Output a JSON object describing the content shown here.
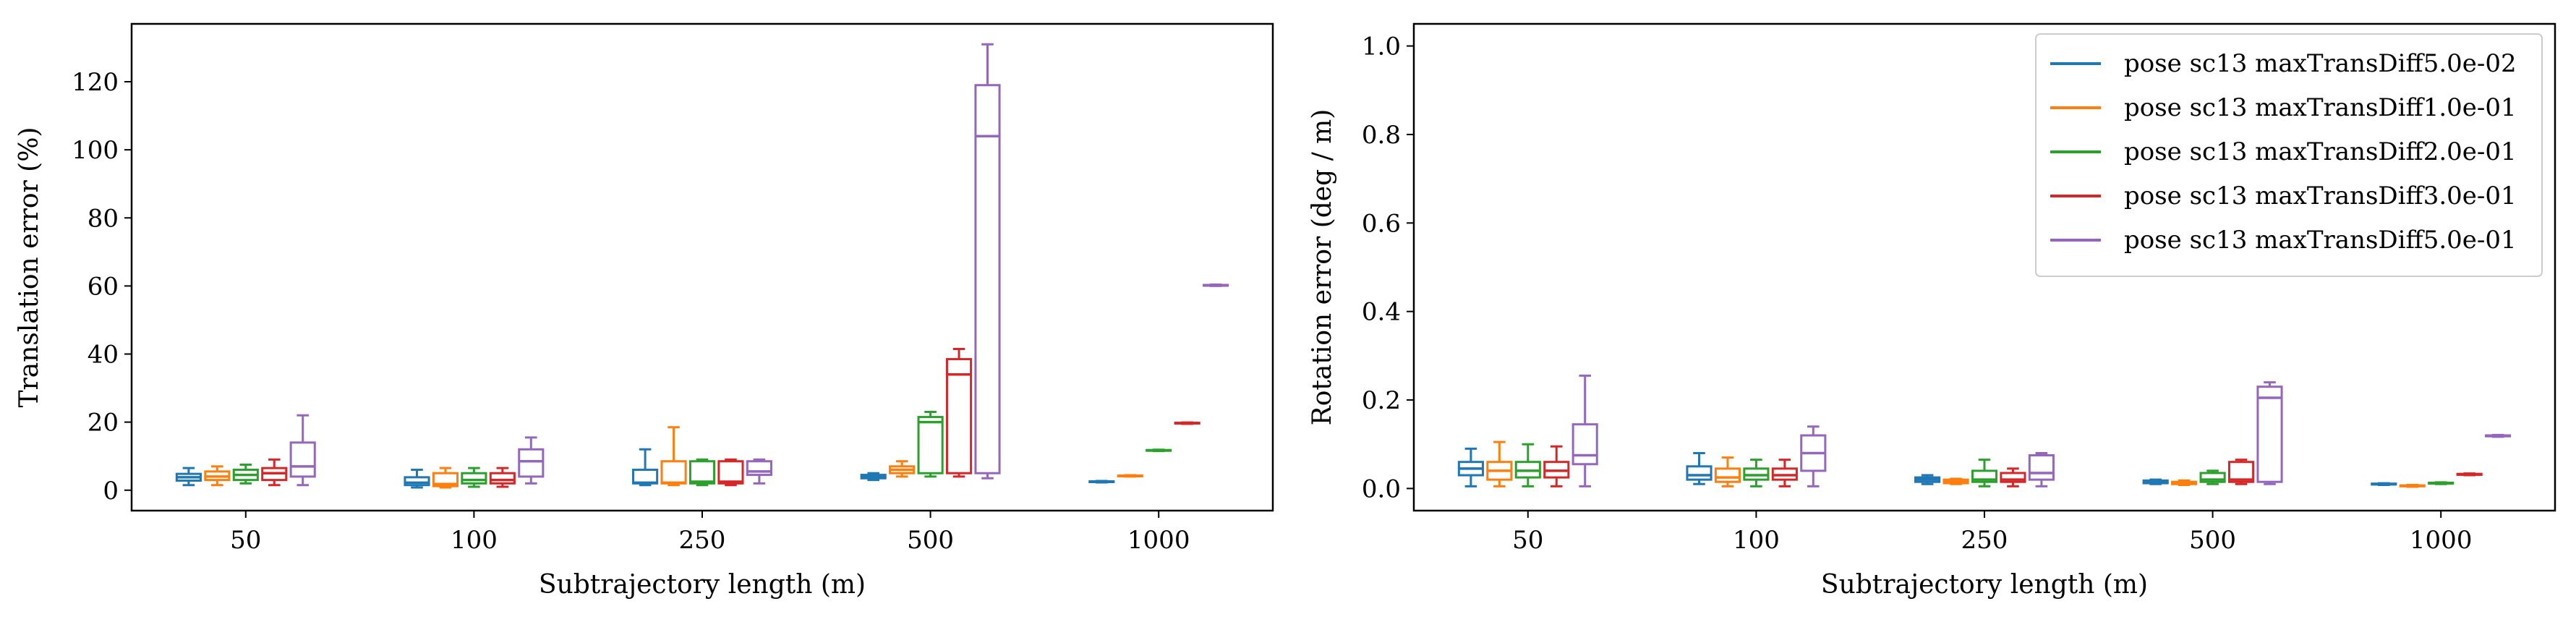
{
  "colors": {
    "series": [
      "#1f77b4",
      "#ff7f0e",
      "#2ca02c",
      "#d62728",
      "#9467bd"
    ]
  },
  "chart_data": [
    {
      "type": "boxplot",
      "xlabel": "Subtrajectory length (m)",
      "ylabel": "Translation error (%)",
      "categories": [
        "50",
        "100",
        "250",
        "500",
        "1000"
      ],
      "ylim": [
        -6,
        137
      ],
      "yticks": [
        0,
        20,
        40,
        60,
        80,
        100,
        120
      ],
      "series": [
        {
          "name": "pose sc13 maxTransDiff5.0e-02",
          "boxes": [
            {
              "whislo": 1.5,
              "q1": 2.8,
              "med": 3.8,
              "q3": 4.8,
              "whishi": 6.5
            },
            {
              "whislo": 0.8,
              "q1": 1.5,
              "med": 2.2,
              "q3": 3.8,
              "whishi": 6.0
            },
            {
              "whislo": 1.5,
              "q1": 2.0,
              "med": 2.2,
              "q3": 6.0,
              "whishi": 12.0
            },
            {
              "whislo": 3.0,
              "q1": 3.5,
              "med": 4.0,
              "q3": 4.5,
              "whishi": 5.0
            },
            {
              "whislo": 2.3,
              "q1": 2.4,
              "med": 2.5,
              "q3": 2.6,
              "whishi": 2.7
            }
          ]
        },
        {
          "name": "pose sc13 maxTransDiff1.0e-01",
          "boxes": [
            {
              "whislo": 1.5,
              "q1": 3.0,
              "med": 4.0,
              "q3": 5.5,
              "whishi": 7.0
            },
            {
              "whislo": 0.8,
              "q1": 1.2,
              "med": 1.8,
              "q3": 5.0,
              "whishi": 6.5
            },
            {
              "whislo": 1.5,
              "q1": 2.0,
              "med": 2.2,
              "q3": 8.5,
              "whishi": 18.5
            },
            {
              "whislo": 4.0,
              "q1": 5.0,
              "med": 6.0,
              "q3": 7.0,
              "whishi": 8.5
            },
            {
              "whislo": 4.0,
              "q1": 4.1,
              "med": 4.2,
              "q3": 4.3,
              "whishi": 4.4
            }
          ]
        },
        {
          "name": "pose sc13 maxTransDiff2.0e-01",
          "boxes": [
            {
              "whislo": 2.0,
              "q1": 3.0,
              "med": 4.5,
              "q3": 6.0,
              "whishi": 7.5
            },
            {
              "whislo": 1.0,
              "q1": 2.0,
              "med": 3.0,
              "q3": 5.0,
              "whishi": 6.5
            },
            {
              "whislo": 1.5,
              "q1": 2.0,
              "med": 2.5,
              "q3": 8.5,
              "whishi": 9.0
            },
            {
              "whislo": 4.0,
              "q1": 5.0,
              "med": 20.0,
              "q3": 21.5,
              "whishi": 23.0
            },
            {
              "whislo": 11.5,
              "q1": 11.6,
              "med": 11.7,
              "q3": 11.8,
              "whishi": 11.9
            }
          ]
        },
        {
          "name": "pose sc13 maxTransDiff3.0e-01",
          "boxes": [
            {
              "whislo": 1.5,
              "q1": 3.0,
              "med": 5.0,
              "q3": 6.5,
              "whishi": 9.0
            },
            {
              "whislo": 1.0,
              "q1": 2.0,
              "med": 3.0,
              "q3": 5.0,
              "whishi": 6.5
            },
            {
              "whislo": 1.5,
              "q1": 2.0,
              "med": 2.5,
              "q3": 8.5,
              "whishi": 9.0
            },
            {
              "whislo": 4.0,
              "q1": 5.0,
              "med": 34.0,
              "q3": 38.5,
              "whishi": 41.5
            },
            {
              "whislo": 19.5,
              "q1": 19.6,
              "med": 19.7,
              "q3": 19.8,
              "whishi": 19.9
            }
          ]
        },
        {
          "name": "pose sc13 maxTransDiff5.0e-01",
          "boxes": [
            {
              "whislo": 1.5,
              "q1": 4.0,
              "med": 7.0,
              "q3": 14.0,
              "whishi": 22.0
            },
            {
              "whislo": 2.0,
              "q1": 4.0,
              "med": 8.5,
              "q3": 12.0,
              "whishi": 15.5
            },
            {
              "whislo": 2.0,
              "q1": 4.5,
              "med": 5.5,
              "q3": 8.5,
              "whishi": 9.0
            },
            {
              "whislo": 3.5,
              "q1": 5.0,
              "med": 104.0,
              "q3": 119.0,
              "whishi": 131.0
            },
            {
              "whislo": 60.0,
              "q1": 60.1,
              "med": 60.2,
              "q3": 60.3,
              "whishi": 60.4
            }
          ]
        }
      ]
    },
    {
      "type": "boxplot",
      "xlabel": "Subtrajectory length (m)",
      "ylabel": "Rotation error (deg / m)",
      "categories": [
        "50",
        "100",
        "250",
        "500",
        "1000"
      ],
      "ylim": [
        -0.05,
        1.05
      ],
      "yticks": [
        "0.0",
        "0.2",
        "0.4",
        "0.6",
        "0.8",
        "1.0"
      ],
      "legend": "top-right",
      "series": [
        {
          "name": "pose sc13 maxTransDiff5.0e-02",
          "boxes": [
            {
              "whislo": 0.005,
              "q1": 0.03,
              "med": 0.045,
              "q3": 0.06,
              "whishi": 0.09
            },
            {
              "whislo": 0.01,
              "q1": 0.02,
              "med": 0.03,
              "q3": 0.05,
              "whishi": 0.08
            },
            {
              "whislo": 0.01,
              "q1": 0.015,
              "med": 0.02,
              "q3": 0.025,
              "whishi": 0.03
            },
            {
              "whislo": 0.01,
              "q1": 0.012,
              "med": 0.015,
              "q3": 0.018,
              "whishi": 0.02
            },
            {
              "whislo": 0.008,
              "q1": 0.009,
              "med": 0.01,
              "q3": 0.011,
              "whishi": 0.012
            }
          ]
        },
        {
          "name": "pose sc13 maxTransDiff1.0e-01",
          "boxes": [
            {
              "whislo": 0.005,
              "q1": 0.02,
              "med": 0.04,
              "q3": 0.06,
              "whishi": 0.105
            },
            {
              "whislo": 0.005,
              "q1": 0.015,
              "med": 0.025,
              "q3": 0.045,
              "whishi": 0.07
            },
            {
              "whislo": 0.01,
              "q1": 0.012,
              "med": 0.015,
              "q3": 0.02,
              "whishi": 0.022
            },
            {
              "whislo": 0.008,
              "q1": 0.01,
              "med": 0.012,
              "q3": 0.015,
              "whishi": 0.018
            },
            {
              "whislo": 0.004,
              "q1": 0.005,
              "med": 0.006,
              "q3": 0.007,
              "whishi": 0.008
            }
          ]
        },
        {
          "name": "pose sc13 maxTransDiff2.0e-01",
          "boxes": [
            {
              "whislo": 0.005,
              "q1": 0.025,
              "med": 0.04,
              "q3": 0.06,
              "whishi": 0.1
            },
            {
              "whislo": 0.005,
              "q1": 0.02,
              "med": 0.03,
              "q3": 0.045,
              "whishi": 0.065
            },
            {
              "whislo": 0.005,
              "q1": 0.015,
              "med": 0.02,
              "q3": 0.04,
              "whishi": 0.065
            },
            {
              "whislo": 0.01,
              "q1": 0.015,
              "med": 0.02,
              "q3": 0.035,
              "whishi": 0.04
            },
            {
              "whislo": 0.01,
              "q1": 0.011,
              "med": 0.012,
              "q3": 0.013,
              "whishi": 0.014
            }
          ]
        },
        {
          "name": "pose sc13 maxTransDiff3.0e-01",
          "boxes": [
            {
              "whislo": 0.005,
              "q1": 0.025,
              "med": 0.04,
              "q3": 0.06,
              "whishi": 0.095
            },
            {
              "whislo": 0.005,
              "q1": 0.02,
              "med": 0.03,
              "q3": 0.045,
              "whishi": 0.065
            },
            {
              "whislo": 0.005,
              "q1": 0.015,
              "med": 0.02,
              "q3": 0.035,
              "whishi": 0.045
            },
            {
              "whislo": 0.01,
              "q1": 0.015,
              "med": 0.02,
              "q3": 0.06,
              "whishi": 0.065
            },
            {
              "whislo": 0.03,
              "q1": 0.031,
              "med": 0.032,
              "q3": 0.033,
              "whishi": 0.034
            }
          ]
        },
        {
          "name": "pose sc13 maxTransDiff5.0e-01",
          "boxes": [
            {
              "whislo": 0.005,
              "q1": 0.055,
              "med": 0.075,
              "q3": 0.145,
              "whishi": 0.255
            },
            {
              "whislo": 0.005,
              "q1": 0.04,
              "med": 0.08,
              "q3": 0.12,
              "whishi": 0.14
            },
            {
              "whislo": 0.005,
              "q1": 0.02,
              "med": 0.035,
              "q3": 0.075,
              "whishi": 0.08
            },
            {
              "whislo": 0.01,
              "q1": 0.015,
              "med": 0.205,
              "q3": 0.23,
              "whishi": 0.24
            },
            {
              "whislo": 0.117,
              "q1": 0.118,
              "med": 0.119,
              "q3": 0.12,
              "whishi": 0.121
            }
          ]
        }
      ]
    }
  ]
}
